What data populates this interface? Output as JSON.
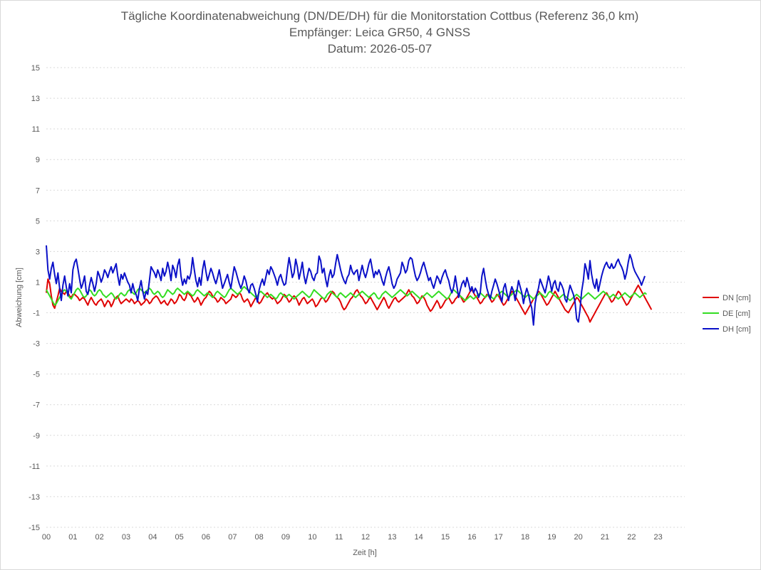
{
  "chart_data": {
    "type": "line",
    "title": [
      "Tägliche Koordinatenabweichung (DN/DE/DH) für die Monitorstation Cottbus (Referenz 36,0 km)",
      "Empfänger: Leica GR50, 4 GNSS",
      "Datum: 2026-05-07"
    ],
    "xlabel": "Zeit [h]",
    "ylabel": "Abweichung [cm]",
    "xlim": [
      0,
      24
    ],
    "ylim": [
      -15,
      15
    ],
    "x_ticks": [
      "00",
      "01",
      "02",
      "03",
      "04",
      "05",
      "06",
      "07",
      "08",
      "09",
      "10",
      "11",
      "12",
      "13",
      "14",
      "15",
      "16",
      "17",
      "18",
      "19",
      "20",
      "21",
      "22",
      "23"
    ],
    "y_ticks": [
      15,
      13,
      11,
      9,
      7,
      5,
      3,
      1,
      -1,
      -3,
      -5,
      -7,
      -9,
      -11,
      -13,
      -15
    ],
    "grid": "horizontal dashed",
    "legend_position": "right",
    "sample_step_h": 0.0625,
    "series": [
      {
        "name": "DN [cm]",
        "color": "#e00000",
        "values": [
          0.3,
          1.2,
          0.9,
          0.1,
          -0.5,
          -0.7,
          -0.3,
          0.1,
          0.6,
          0.4,
          0.3,
          0.2,
          0.4,
          0.3,
          0.1,
          0.0,
          0.2,
          0.2,
          0.1,
          0.0,
          -0.2,
          -0.1,
          0.0,
          -0.1,
          -0.3,
          -0.5,
          -0.2,
          0.0,
          -0.2,
          -0.4,
          -0.5,
          -0.3,
          -0.2,
          -0.1,
          -0.3,
          -0.6,
          -0.4,
          -0.2,
          -0.3,
          -0.6,
          -0.4,
          -0.1,
          0.0,
          0.1,
          -0.2,
          -0.4,
          -0.3,
          -0.2,
          -0.1,
          -0.2,
          -0.3,
          -0.1,
          -0.2,
          -0.4,
          -0.3,
          -0.2,
          -0.3,
          -0.5,
          -0.4,
          -0.3,
          -0.1,
          -0.2,
          -0.4,
          -0.3,
          -0.1,
          0.0,
          0.1,
          0.0,
          -0.2,
          -0.4,
          -0.3,
          -0.2,
          -0.4,
          -0.5,
          -0.3,
          -0.1,
          -0.2,
          -0.4,
          -0.3,
          -0.1,
          0.2,
          0.1,
          -0.1,
          -0.2,
          0.0,
          0.4,
          0.2,
          0.1,
          -0.1,
          -0.3,
          -0.2,
          0.0,
          -0.2,
          -0.5,
          -0.3,
          -0.1,
          0.0,
          0.2,
          0.4,
          0.3,
          0.1,
          0.0,
          -0.1,
          -0.3,
          -0.2,
          0.0,
          -0.1,
          -0.2,
          -0.4,
          -0.3,
          -0.2,
          -0.1,
          0.2,
          0.1,
          0.0,
          0.1,
          0.3,
          0.2,
          -0.1,
          -0.3,
          -0.2,
          -0.1,
          -0.3,
          -0.6,
          -0.4,
          -0.2,
          0.0,
          -0.2,
          -0.4,
          -0.3,
          -0.1,
          0.1,
          0.2,
          0.3,
          0.1,
          0.0,
          -0.1,
          0.0,
          -0.2,
          -0.4,
          -0.3,
          -0.2,
          0.0,
          0.2,
          0.1,
          -0.1,
          -0.3,
          -0.2,
          0.0,
          0.1,
          0.0,
          -0.2,
          -0.5,
          -0.3,
          -0.1,
          0.0,
          -0.2,
          -0.4,
          -0.3,
          -0.2,
          -0.1,
          -0.3,
          -0.6,
          -0.5,
          -0.3,
          -0.1,
          0.0,
          -0.1,
          -0.3,
          -0.2,
          0.0,
          0.2,
          0.4,
          0.3,
          0.1,
          0.0,
          -0.1,
          -0.3,
          -0.6,
          -0.8,
          -0.7,
          -0.5,
          -0.3,
          -0.1,
          0.0,
          0.2,
          0.4,
          0.5,
          0.3,
          0.1,
          0.0,
          -0.2,
          -0.4,
          -0.3,
          -0.1,
          0.0,
          -0.2,
          -0.4,
          -0.6,
          -0.8,
          -0.6,
          -0.4,
          -0.2,
          0.0,
          -0.2,
          -0.5,
          -0.7,
          -0.5,
          -0.3,
          -0.1,
          0.0,
          -0.2,
          -0.3,
          -0.2,
          -0.1,
          0.0,
          0.1,
          0.3,
          0.5,
          0.3,
          0.1,
          0.0,
          -0.2,
          -0.4,
          -0.3,
          -0.1,
          0.1,
          0.0,
          -0.2,
          -0.5,
          -0.7,
          -0.9,
          -0.8,
          -0.6,
          -0.4,
          -0.2,
          -0.4,
          -0.7,
          -0.6,
          -0.4,
          -0.2,
          -0.1,
          0.0,
          -0.2,
          -0.4,
          -0.3,
          -0.1,
          0.0,
          0.2,
          0.1,
          -0.1,
          -0.3,
          -0.2,
          0.0,
          0.2,
          0.4,
          0.5,
          0.3,
          0.1,
          0.0,
          -0.2,
          -0.4,
          -0.3,
          -0.1,
          0.0,
          0.2,
          0.1,
          -0.1,
          -0.3,
          -0.2,
          0.0,
          0.2,
          0.1,
          -0.1,
          -0.3,
          -0.5,
          -0.4,
          -0.2,
          0.0,
          0.2,
          0.4,
          0.3,
          0.1,
          -0.1,
          -0.3,
          -0.5,
          -0.7,
          -0.9,
          -1.1,
          -0.9,
          -0.7,
          -0.5,
          -0.3,
          -0.1,
          0.0,
          0.2,
          0.4,
          0.3,
          0.1,
          -0.1,
          -0.3,
          -0.5,
          -0.4,
          -0.2,
          0.0,
          0.2,
          0.4,
          0.2,
          0.0,
          -0.2,
          -0.4,
          -0.6,
          -0.8,
          -0.9,
          -1.0,
          -0.8,
          -0.6,
          -0.4,
          -0.2,
          0.0,
          -0.1,
          -0.3,
          -0.5,
          -0.7,
          -0.9,
          -1.1,
          -1.3,
          -1.6,
          -1.4,
          -1.2,
          -1.0,
          -0.8,
          -0.6,
          -0.4,
          -0.2,
          0.0,
          0.2,
          0.3,
          0.1,
          -0.1,
          -0.3,
          -0.2,
          0.0,
          0.2,
          0.4,
          0.3,
          0.1,
          -0.1,
          -0.3,
          -0.5,
          -0.4,
          -0.2,
          0.0,
          0.2,
          0.4,
          0.6,
          0.8,
          0.6,
          0.4,
          0.2,
          0.0,
          -0.2,
          -0.4,
          -0.6,
          -0.8
        ]
      },
      {
        "name": "DE [cm]",
        "color": "#33dd22",
        "values": [
          0.5,
          0.3,
          0.1,
          -0.1,
          -0.3,
          -0.5,
          -0.4,
          -0.2,
          0.0,
          0.2,
          0.4,
          0.5,
          0.4,
          0.2,
          0.0,
          -0.1,
          0.1,
          0.3,
          0.5,
          0.6,
          0.5,
          0.3,
          0.1,
          0.0,
          0.1,
          0.3,
          0.5,
          0.4,
          0.2,
          0.1,
          0.2,
          0.4,
          0.5,
          0.4,
          0.2,
          0.1,
          0.0,
          0.1,
          0.2,
          0.3,
          0.2,
          0.0,
          -0.1,
          0.0,
          0.2,
          0.3,
          0.2,
          0.1,
          0.2,
          0.4,
          0.5,
          0.4,
          0.3,
          0.2,
          0.3,
          0.5,
          0.6,
          0.5,
          0.4,
          0.3,
          0.4,
          0.5,
          0.6,
          0.5,
          0.3,
          0.2,
          0.3,
          0.4,
          0.3,
          0.1,
          0.0,
          0.1,
          0.3,
          0.5,
          0.4,
          0.3,
          0.2,
          0.3,
          0.5,
          0.6,
          0.5,
          0.4,
          0.3,
          0.2,
          0.3,
          0.4,
          0.3,
          0.2,
          0.1,
          0.2,
          0.4,
          0.5,
          0.4,
          0.3,
          0.2,
          0.1,
          0.2,
          0.3,
          0.2,
          0.1,
          0.0,
          0.1,
          0.3,
          0.4,
          0.3,
          0.2,
          0.1,
          0.0,
          0.1,
          0.3,
          0.5,
          0.6,
          0.5,
          0.4,
          0.3,
          0.2,
          0.3,
          0.4,
          0.6,
          0.7,
          0.6,
          0.5,
          0.4,
          0.3,
          0.2,
          0.1,
          0.0,
          0.1,
          0.3,
          0.4,
          0.3,
          0.2,
          0.1,
          0.0,
          0.1,
          0.2,
          0.1,
          0.0,
          -0.1,
          0.0,
          0.2,
          0.3,
          0.2,
          0.1,
          0.0,
          0.1,
          0.2,
          0.1,
          0.0,
          -0.1,
          0.0,
          0.1,
          0.2,
          0.3,
          0.4,
          0.3,
          0.2,
          0.1,
          0.0,
          0.1,
          0.3,
          0.5,
          0.4,
          0.3,
          0.2,
          0.1,
          0.0,
          -0.1,
          0.0,
          0.2,
          0.3,
          0.4,
          0.3,
          0.2,
          0.1,
          0.0,
          0.2,
          0.3,
          0.2,
          0.1,
          0.0,
          0.1,
          0.2,
          0.3,
          0.2,
          0.1,
          0.0,
          0.1,
          0.2,
          0.3,
          0.4,
          0.3,
          0.2,
          0.1,
          0.0,
          0.1,
          0.2,
          0.3,
          0.2,
          0.0,
          -0.1,
          0.0,
          0.2,
          0.3,
          0.4,
          0.3,
          0.2,
          0.1,
          0.0,
          0.1,
          0.2,
          0.3,
          0.4,
          0.5,
          0.4,
          0.3,
          0.2,
          0.1,
          0.2,
          0.3,
          0.4,
          0.3,
          0.2,
          0.1,
          0.0,
          -0.1,
          0.0,
          0.1,
          0.2,
          0.3,
          0.2,
          0.1,
          0.0,
          0.1,
          0.2,
          0.3,
          0.4,
          0.3,
          0.2,
          0.1,
          0.0,
          -0.1,
          0.0,
          0.2,
          0.4,
          0.5,
          0.4,
          0.3,
          0.2,
          0.1,
          0.0,
          -0.1,
          -0.2,
          -0.1,
          0.0,
          0.1,
          0.0,
          -0.1,
          0.0,
          0.1,
          0.2,
          0.3,
          0.2,
          0.1,
          0.0,
          0.1,
          0.2,
          0.1,
          0.0,
          -0.1,
          0.0,
          0.1,
          0.2,
          0.3,
          0.4,
          0.3,
          0.2,
          0.1,
          0.0,
          0.1,
          0.2,
          0.3,
          0.4,
          0.5,
          0.4,
          0.3,
          0.2,
          0.1,
          0.0,
          0.1,
          0.2,
          0.1,
          0.0,
          -0.1,
          0.0,
          0.1,
          0.2,
          0.3,
          0.2,
          0.1,
          0.0,
          0.1,
          0.3,
          0.4,
          0.3,
          0.2,
          0.1,
          0.0,
          -0.1,
          0.0,
          0.1,
          0.2,
          0.1,
          0.0,
          -0.1,
          -0.2,
          -0.1,
          0.0,
          0.1,
          0.2,
          0.1,
          0.0,
          -0.1,
          0.0,
          0.1,
          0.2,
          0.3,
          0.2,
          0.1,
          0.0,
          -0.1,
          0.0,
          0.1,
          0.2,
          0.3,
          0.4,
          0.3,
          0.2,
          0.1,
          0.0,
          0.1,
          0.2,
          0.1,
          0.0,
          -0.1,
          0.0,
          0.1,
          0.2,
          0.3,
          0.2,
          0.1,
          0.0,
          0.1,
          0.2,
          0.3,
          0.2,
          0.1,
          0.0,
          0.1,
          0.2,
          0.3,
          0.2
        ]
      },
      {
        "name": "DH [cm]",
        "color": "#0a10c8",
        "values": [
          3.4,
          1.8,
          1.2,
          1.9,
          2.3,
          1.5,
          0.9,
          1.6,
          0.6,
          -0.2,
          0.8,
          1.4,
          0.7,
          0.1,
          0.9,
          0.3,
          1.8,
          2.3,
          2.5,
          1.9,
          1.2,
          0.6,
          0.9,
          1.4,
          0.4,
          0.2,
          0.8,
          1.3,
          0.9,
          0.4,
          0.9,
          1.7,
          1.4,
          1.0,
          1.3,
          1.8,
          1.6,
          1.3,
          1.7,
          2.0,
          1.6,
          1.9,
          2.2,
          1.4,
          0.8,
          1.5,
          1.2,
          1.6,
          1.3,
          1.0,
          0.8,
          0.3,
          0.9,
          0.4,
          0.2,
          -0.2,
          0.6,
          1.1,
          0.4,
          -0.1,
          0.4,
          0.2,
          1.1,
          2.0,
          1.8,
          1.6,
          1.3,
          1.8,
          1.5,
          1.1,
          1.9,
          1.4,
          1.7,
          2.3,
          1.8,
          1.1,
          2.1,
          1.8,
          1.3,
          2.1,
          2.5,
          1.4,
          0.8,
          1.2,
          0.9,
          1.4,
          1.2,
          1.6,
          2.6,
          1.8,
          1.1,
          0.7,
          1.3,
          0.8,
          1.8,
          2.4,
          1.7,
          1.1,
          1.5,
          1.9,
          1.6,
          1.2,
          0.9,
          1.3,
          1.8,
          1.2,
          0.6,
          0.9,
          1.2,
          1.5,
          1.0,
          0.6,
          1.3,
          2.0,
          1.7,
          1.3,
          0.9,
          0.6,
          0.9,
          1.4,
          1.1,
          0.6,
          0.3,
          0.8,
          0.9,
          0.6,
          0.2,
          -0.3,
          0.5,
          0.9,
          1.2,
          0.8,
          1.3,
          1.8,
          1.5,
          2.0,
          1.8,
          1.5,
          1.2,
          0.8,
          1.3,
          1.5,
          1.1,
          0.8,
          0.9,
          1.8,
          2.6,
          2.0,
          1.3,
          1.6,
          2.5,
          2.0,
          1.2,
          1.7,
          2.3,
          1.4,
          0.9,
          1.4,
          1.9,
          1.7,
          1.3,
          1.1,
          1.5,
          1.6,
          2.7,
          2.4,
          1.6,
          1.9,
          1.2,
          0.7,
          1.4,
          1.8,
          1.3,
          1.5,
          2.2,
          2.8,
          2.3,
          1.8,
          1.4,
          1.1,
          0.9,
          1.3,
          1.5,
          2.1,
          1.7,
          1.5,
          1.7,
          1.8,
          1.1,
          1.6,
          2.1,
          1.6,
          1.3,
          1.7,
          2.2,
          2.5,
          1.9,
          1.3,
          1.7,
          1.5,
          1.8,
          1.5,
          1.1,
          0.8,
          1.3,
          1.7,
          2.0,
          1.5,
          0.9,
          0.6,
          0.8,
          1.2,
          1.4,
          1.6,
          2.3,
          2.0,
          1.6,
          1.8,
          2.4,
          2.6,
          2.5,
          1.9,
          1.4,
          1.1,
          1.3,
          1.6,
          2.0,
          2.3,
          1.9,
          1.5,
          1.1,
          1.3,
          0.9,
          0.6,
          1.0,
          1.4,
          1.2,
          0.9,
          1.3,
          1.6,
          1.8,
          1.4,
          1.1,
          0.6,
          0.3,
          0.7,
          1.4,
          0.7,
          0.0,
          0.5,
          0.9,
          1.1,
          0.7,
          1.3,
          0.9,
          0.4,
          0.7,
          0.3,
          0.6,
          0.4,
          0.0,
          0.3,
          1.4,
          1.9,
          1.2,
          0.6,
          0.2,
          -0.1,
          0.4,
          0.8,
          1.2,
          0.9,
          0.5,
          0.1,
          -0.3,
          0.6,
          0.9,
          0.3,
          -0.2,
          0.3,
          0.7,
          0.4,
          -0.2,
          0.4,
          1.1,
          0.7,
          0.3,
          -0.4,
          0.2,
          0.6,
          0.2,
          -0.3,
          -0.7,
          -1.8,
          -0.4,
          0.2,
          0.6,
          1.2,
          0.9,
          0.6,
          0.3,
          0.8,
          1.4,
          1.0,
          0.4,
          0.9,
          1.1,
          0.6,
          0.4,
          1.0,
          0.8,
          0.5,
          -0.1,
          -0.3,
          0.3,
          0.8,
          0.5,
          0.2,
          -0.3,
          -1.4,
          -1.6,
          -0.8,
          0.4,
          1.1,
          2.2,
          1.8,
          1.2,
          2.4,
          1.5,
          0.9,
          0.6,
          1.2,
          0.4,
          0.9,
          1.4,
          1.8,
          2.1,
          2.3,
          2.0,
          1.9,
          2.2,
          1.9,
          2.0,
          2.3,
          2.5,
          2.2,
          2.0,
          1.7,
          1.2,
          1.6,
          2.3,
          2.8,
          2.5,
          2.0,
          1.7,
          1.5,
          1.3,
          1.1,
          0.8,
          1.1,
          1.4
        ]
      }
    ]
  }
}
